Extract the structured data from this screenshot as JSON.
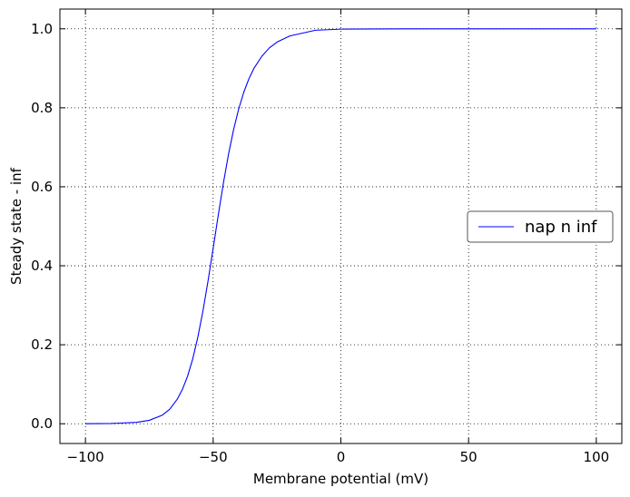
{
  "chart_data": {
    "type": "line",
    "xlabel": "Membrane potential (mV)",
    "ylabel": "Steady state - inf",
    "xlim": [
      -110,
      110
    ],
    "ylim": [
      -0.05,
      1.05
    ],
    "xticks": [
      -100,
      -50,
      0,
      50,
      100
    ],
    "xtick_labels": [
      "−100",
      "−50",
      "0",
      "50",
      "100"
    ],
    "yticks": [
      0.0,
      0.2,
      0.4,
      0.6,
      0.8,
      1.0
    ],
    "ytick_labels": [
      "0.0",
      "0.2",
      "0.4",
      "0.6",
      "0.8",
      "1.0"
    ],
    "grid": true,
    "legend": "center-right",
    "series": [
      {
        "name": "nap n inf",
        "color": "#0000ff",
        "x": [
          -100,
          -90,
          -80,
          -75,
          -70,
          -67,
          -64,
          -62,
          -60,
          -58,
          -56,
          -54,
          -52,
          -50,
          -48,
          -46,
          -44,
          -42,
          -40,
          -38,
          -36,
          -34,
          -31,
          -28,
          -25,
          -20,
          -10,
          0,
          25,
          50,
          75,
          100
        ],
        "y": [
          0.0002,
          0.0006,
          0.0035,
          0.0087,
          0.0214,
          0.0368,
          0.0627,
          0.0876,
          0.1207,
          0.1643,
          0.2192,
          0.2857,
          0.3618,
          0.4443,
          0.5283,
          0.609,
          0.682,
          0.7448,
          0.7971,
          0.8396,
          0.8736,
          0.9004,
          0.93,
          0.9517,
          0.9664,
          0.9819,
          0.9963,
          0.9992,
          1.0,
          1.0,
          1.0,
          1.0
        ]
      }
    ]
  }
}
